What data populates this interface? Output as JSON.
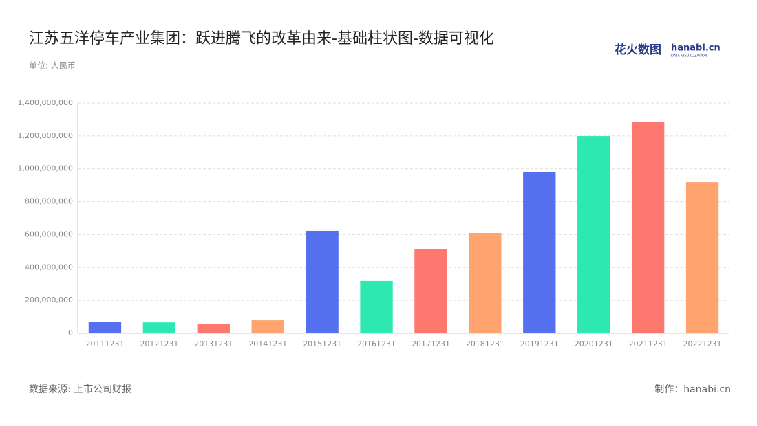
{
  "chart_data": {
    "type": "bar",
    "title": "江苏五洋停车产业集团：跃进腾飞的改革由来-基础柱状图-数据可视化",
    "subtitle": "单位: 人民币",
    "source": "数据来源: 上市公司财报",
    "credit": "制作：hanabi.cn",
    "logo": {
      "name": "花火数图",
      "brand": "hanabi.cn",
      "tagline": "DATA VISUALIZATION"
    },
    "categories": [
      "20111231",
      "20121231",
      "20131231",
      "20141231",
      "20151231",
      "20161231",
      "20171231",
      "20181231",
      "20191231",
      "20201231",
      "20211231",
      "20221231"
    ],
    "values": [
      67000000,
      66000000,
      58000000,
      79000000,
      623000000,
      318000000,
      510000000,
      610000000,
      982000000,
      1199000000,
      1287000000,
      919000000
    ],
    "colors": [
      "#5470ee",
      "#2de8b0",
      "#ff7870",
      "#ffa46f",
      "#5470ee",
      "#2de8b0",
      "#ff7870",
      "#ffa46f",
      "#5470ee",
      "#2de8b0",
      "#ff7870",
      "#ffa46f"
    ],
    "ylim": [
      0,
      1400000000
    ],
    "yticks": [
      0,
      {
        "value": 200000000,
        "label": "200,000,000"
      },
      {
        "value": 400000000,
        "label": "400,000,000"
      },
      {
        "value": 600000000,
        "label": "600,000,000"
      },
      {
        "value": 800000000,
        "label": "800,000,000"
      },
      {
        "value": 1000000000,
        "label": "1,000,000,000"
      },
      {
        "value": 1200000000,
        "label": "1,200,000,000"
      },
      {
        "value": 1400000000,
        "label": "1,400,000,000"
      }
    ],
    "grid": true
  }
}
